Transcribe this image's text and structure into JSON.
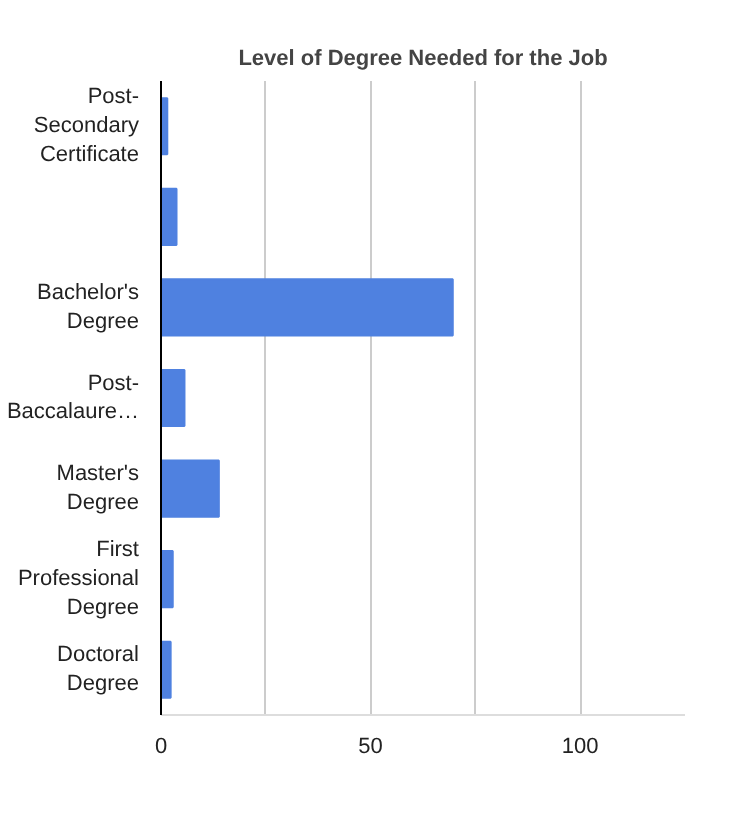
{
  "chart_data": {
    "type": "bar",
    "orientation": "horizontal",
    "title": "Level of Degree Needed for the Job",
    "categories": [
      "Post-Secondary Certificate",
      null,
      "Bachelor's Degree",
      "Post-Baccalaure…",
      "Master's Degree",
      "First Professional Degree",
      "Doctoral Degree"
    ],
    "values": [
      1.5,
      3.7,
      69.6,
      5.6,
      13.8,
      2.8,
      2.3
    ],
    "color": "#4f81e0",
    "xlim": [
      0,
      125
    ],
    "xticks": [
      0,
      {
        "value": 25,
        "label": null
      },
      50,
      {
        "value": 75,
        "label": null
      },
      100
    ],
    "grid": "x"
  }
}
